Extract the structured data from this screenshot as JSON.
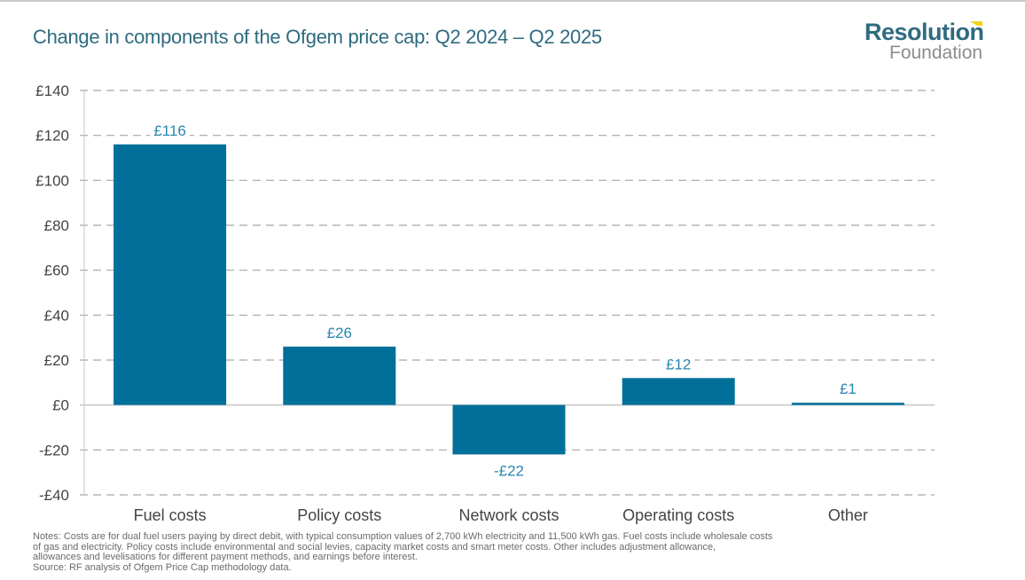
{
  "header": {
    "title": "Change in components of the Ofgem price cap: Q2 2024 – Q2 2025"
  },
  "logo": {
    "line1": "Resolution",
    "line2": "Foundation",
    "accent_color": "#f2d21b",
    "brand_color": "#2f6b80"
  },
  "colors": {
    "bar": "#00709a",
    "label": "#2a86b0",
    "grid": "#a6a6a6",
    "axis_text": "#444444"
  },
  "chart_data": {
    "type": "bar",
    "title": "Change in components of the Ofgem price cap: Q2 2024 – Q2 2025",
    "xlabel": "",
    "ylabel": "",
    "categories": [
      "Fuel costs",
      "Policy costs",
      "Network costs",
      "Operating costs",
      "Other"
    ],
    "values": [
      116,
      26,
      -22,
      12,
      1
    ],
    "data_labels": [
      "£116",
      "£26",
      "-£22",
      "£12",
      "£1"
    ],
    "ylim": [
      -40,
      140
    ],
    "yticks": [
      140,
      120,
      100,
      80,
      60,
      40,
      20,
      0,
      -20,
      -40
    ],
    "ytick_labels": [
      "£140",
      "£120",
      "£100",
      "£80",
      "£60",
      "£40",
      "£20",
      "£0",
      "-£20",
      "-£40"
    ],
    "grid": "horizontal dashed",
    "legend": "none"
  },
  "footer": {
    "notes_lines": [
      "Notes: Costs are for dual fuel users paying by direct debit, with typical consumption values of 2,700 kWh electricity and 11,500 kWh gas. Fuel costs include wholesale costs",
      "of gas and electricity. Policy costs include environmental and social levies, capacity market costs and smart meter costs. Other includes adjustment allowance,",
      "allowances and levelisations for different payment methods, and earnings before interest."
    ],
    "source": "Source: RF analysis of Ofgem Price Cap methodology data."
  }
}
